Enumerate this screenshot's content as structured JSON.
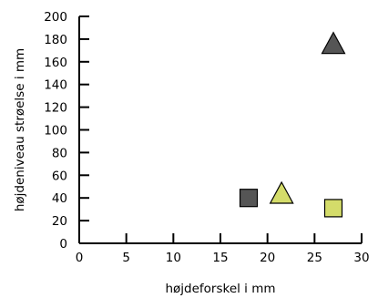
{
  "chart_data": {
    "type": "scatter",
    "title": "",
    "xlabel": "højdeforskel i mm",
    "ylabel": "højdeniveau strøelse i mm",
    "xlim": [
      0,
      30
    ],
    "ylim": [
      0,
      200
    ],
    "x_ticks": [
      0,
      5,
      10,
      15,
      20,
      25,
      30
    ],
    "y_ticks": [
      0,
      20,
      40,
      60,
      80,
      100,
      120,
      140,
      160,
      180,
      200
    ],
    "grid": false,
    "legend": "none",
    "points": [
      {
        "x": 27,
        "y": 175,
        "shape": "triangle",
        "color": "#555555"
      },
      {
        "x": 18,
        "y": 40,
        "shape": "square",
        "color": "#555555"
      },
      {
        "x": 21.5,
        "y": 43,
        "shape": "triangle",
        "color": "#d4dc6a"
      },
      {
        "x": 27,
        "y": 31,
        "shape": "square",
        "color": "#d4dc6a"
      }
    ]
  }
}
